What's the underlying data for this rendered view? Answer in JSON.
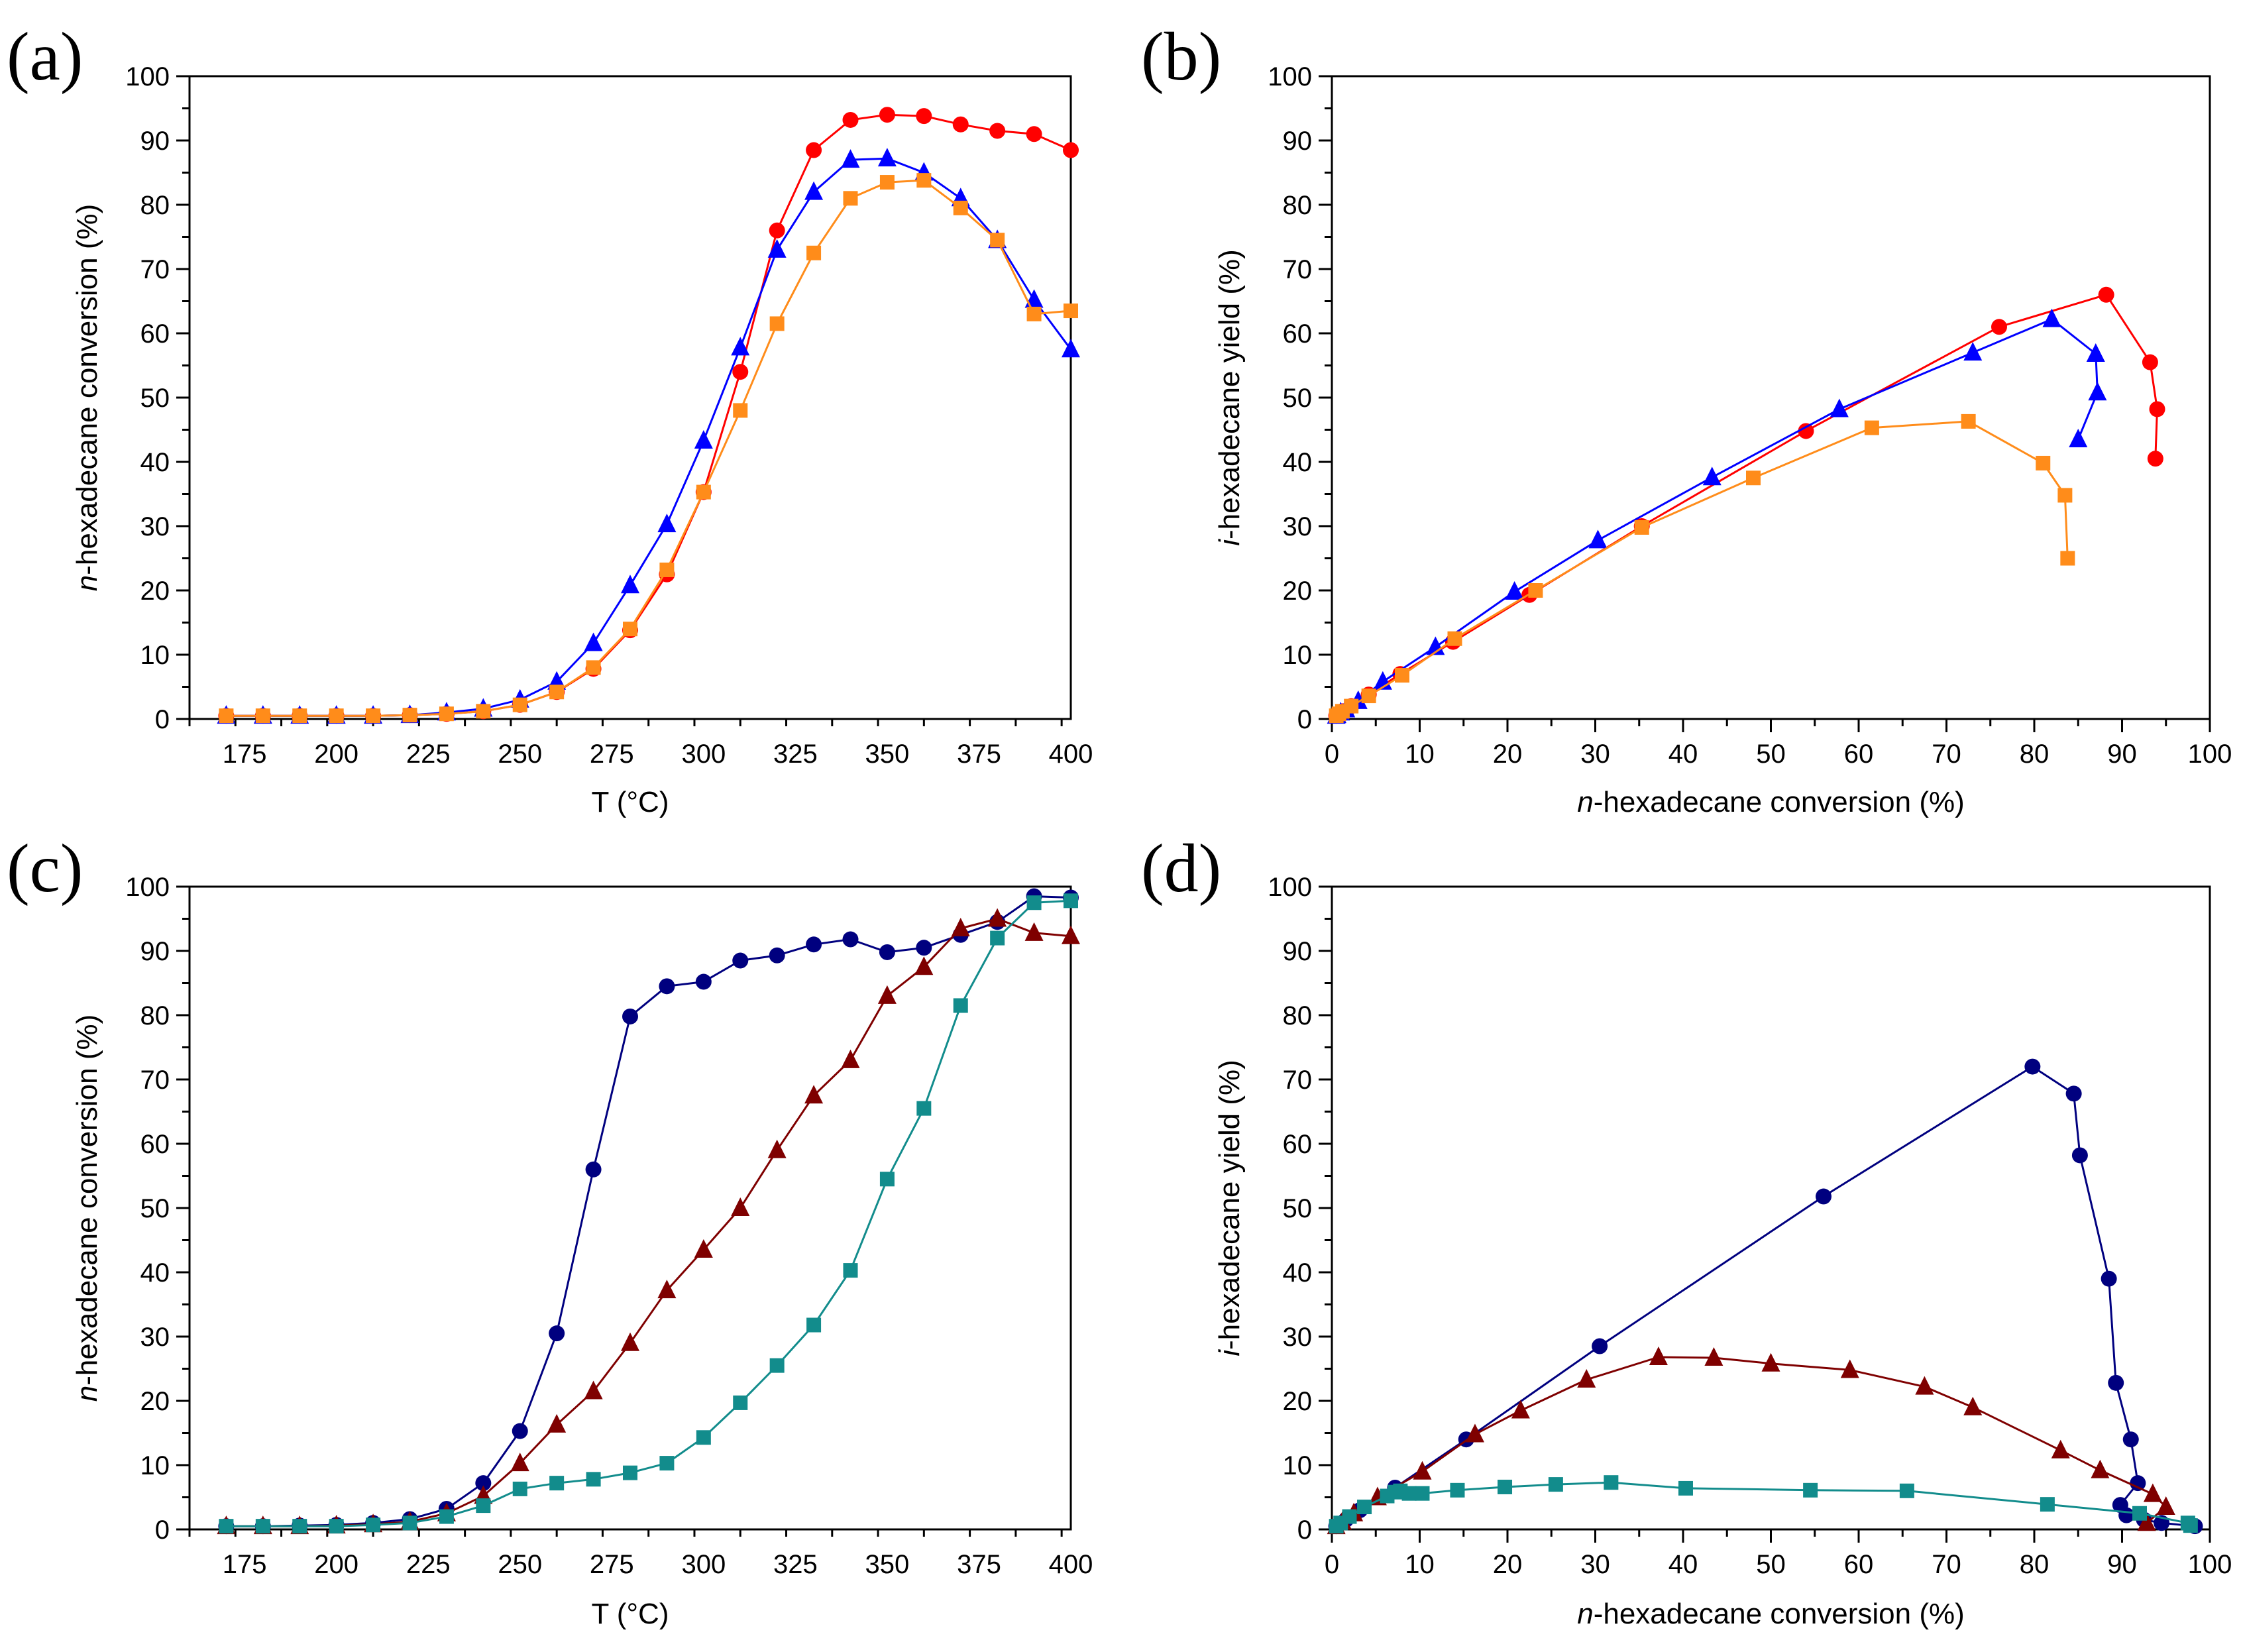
{
  "colors": {
    "red": "#ff0000",
    "blue": "#0000ff",
    "orange": "#ff8c1a",
    "navy": "#00007f",
    "maroon": "#7f0000",
    "teal": "#128c8c"
  },
  "chart_data": [
    {
      "id": "a",
      "panel_label": "(a)",
      "type": "line",
      "xlabel": "T (°C)",
      "ylabel": "n-hexadecane conversion (%)",
      "ylabel_italic": "n",
      "ylabel_rest": "-hexadecane conversion (%)",
      "xlim": [
        160,
        400
      ],
      "ylim": [
        0,
        100
      ],
      "xticks": [
        "175",
        "200",
        "225",
        "250",
        "275",
        "300",
        "325",
        "350",
        "375",
        "400"
      ],
      "yticks": [
        "0",
        "10",
        "20",
        "30",
        "40",
        "50",
        "60",
        "70",
        "80",
        "90",
        "100"
      ],
      "series": [
        {
          "name": "red-circles",
          "color": "red",
          "marker": "circle",
          "x": [
            170,
            180,
            190,
            200,
            210,
            220,
            230,
            240,
            250,
            260,
            270,
            280,
            290,
            300,
            310,
            320,
            330,
            340,
            350,
            360,
            370,
            380,
            390,
            400
          ],
          "y": [
            0.5,
            0.5,
            0.5,
            0.5,
            0.5,
            0.6,
            0.8,
            1.2,
            2.2,
            4.2,
            7.8,
            13.8,
            22.5,
            35.3,
            54,
            76,
            88.5,
            93.2,
            94,
            93.8,
            92.5,
            91.5,
            91,
            88.5
          ]
        },
        {
          "name": "blue-triangles",
          "color": "blue",
          "marker": "triangle",
          "x": [
            170,
            180,
            190,
            200,
            210,
            220,
            230,
            240,
            250,
            260,
            270,
            280,
            290,
            300,
            310,
            320,
            330,
            340,
            350,
            360,
            370,
            380,
            390,
            400
          ],
          "y": [
            0.5,
            0.5,
            0.5,
            0.5,
            0.5,
            0.6,
            1,
            1.6,
            3,
            5.8,
            11.8,
            20.8,
            30.3,
            43.3,
            57.8,
            73,
            82,
            87,
            87.2,
            85,
            81,
            74.5,
            65.2,
            57.5
          ]
        },
        {
          "name": "orange-squares",
          "color": "orange",
          "marker": "square",
          "x": [
            170,
            180,
            190,
            200,
            210,
            220,
            230,
            240,
            250,
            260,
            270,
            280,
            290,
            300,
            310,
            320,
            330,
            340,
            350,
            360,
            370,
            380,
            390,
            400
          ],
          "y": [
            0.5,
            0.5,
            0.5,
            0.5,
            0.5,
            0.6,
            0.8,
            1.2,
            2.2,
            4.2,
            8,
            14,
            23.2,
            35.3,
            48,
            61.5,
            72.5,
            81,
            83.5,
            83.8,
            79.5,
            74.5,
            63,
            63.5
          ]
        }
      ]
    },
    {
      "id": "b",
      "panel_label": "(b)",
      "type": "line",
      "xlabel": "n-hexadecane conversion (%)",
      "xlabel_italic": "n",
      "xlabel_rest": "-hexadecane conversion (%)",
      "ylabel": "i-hexadecane yield (%)",
      "ylabel_italic": "i",
      "ylabel_rest": "-hexadecane yield (%)",
      "xlim": [
        0,
        100
      ],
      "ylim": [
        0,
        100
      ],
      "xticks": [
        "0",
        "10",
        "20",
        "30",
        "40",
        "50",
        "60",
        "70",
        "80",
        "90",
        "100"
      ],
      "yticks": [
        "0",
        "10",
        "20",
        "30",
        "40",
        "50",
        "60",
        "70",
        "80",
        "90",
        "100"
      ],
      "series": [
        {
          "name": "red-circles",
          "color": "red",
          "marker": "circle",
          "x": [
            0.5,
            0.6,
            0.8,
            1.2,
            2.2,
            4.2,
            7.8,
            13.8,
            22.5,
            35.3,
            54,
            76,
            88.2,
            93.2,
            94,
            93.8
          ],
          "y": [
            0.5,
            0.6,
            0.8,
            1.2,
            2,
            3.8,
            7,
            12,
            19.3,
            30,
            44.8,
            61,
            66,
            55.5,
            48.2,
            40.5
          ]
        },
        {
          "name": "blue-triangles",
          "color": "blue",
          "marker": "triangle",
          "x": [
            0.5,
            0.6,
            1,
            1.6,
            3,
            5.8,
            11.8,
            20.8,
            30.3,
            43.3,
            57.8,
            73,
            82,
            87,
            87.2,
            85
          ],
          "y": [
            0.5,
            0.6,
            1,
            1.5,
            2.8,
            5.8,
            11.2,
            19.8,
            27.8,
            37.6,
            48.2,
            57,
            62.2,
            56.8,
            50.8,
            43.5
          ]
        },
        {
          "name": "orange-squares",
          "color": "orange",
          "marker": "square",
          "x": [
            0.5,
            0.8,
            1.2,
            2.2,
            4.2,
            8,
            14,
            23.2,
            35.3,
            48,
            61.5,
            72.5,
            81,
            83.5,
            83.8
          ],
          "y": [
            0.5,
            0.8,
            1.2,
            2,
            3.6,
            6.8,
            12.5,
            20,
            29.8,
            37.5,
            45.3,
            46.3,
            39.8,
            34.8,
            25
          ]
        }
      ]
    },
    {
      "id": "c",
      "panel_label": "(c)",
      "type": "line",
      "xlabel": "T (°C)",
      "ylabel": "n-hexadecane conversion (%)",
      "ylabel_italic": "n",
      "ylabel_rest": "-hexadecane conversion (%)",
      "xlim": [
        160,
        400
      ],
      "ylim": [
        0,
        100
      ],
      "xticks": [
        "175",
        "200",
        "225",
        "250",
        "275",
        "300",
        "325",
        "350",
        "375",
        "400"
      ],
      "yticks": [
        "0",
        "10",
        "20",
        "30",
        "40",
        "50",
        "60",
        "70",
        "80",
        "90",
        "100"
      ],
      "series": [
        {
          "name": "navy-circles",
          "color": "navy",
          "marker": "circle",
          "x": [
            170,
            180,
            190,
            200,
            210,
            220,
            230,
            240,
            250,
            260,
            270,
            280,
            290,
            300,
            310,
            320,
            330,
            340,
            350,
            360,
            370,
            380,
            390,
            400
          ],
          "y": [
            0.5,
            0.5,
            0.6,
            0.7,
            1,
            1.6,
            3.2,
            7.2,
            15.3,
            30.5,
            56,
            79.8,
            84.5,
            85.2,
            88.5,
            89.3,
            91,
            91.8,
            89.8,
            90.5,
            92.5,
            94.5,
            98.5,
            98.3
          ]
        },
        {
          "name": "maroon-triangles",
          "color": "maroon",
          "marker": "triangle",
          "x": [
            170,
            180,
            190,
            200,
            210,
            220,
            230,
            240,
            250,
            260,
            270,
            280,
            290,
            300,
            310,
            320,
            330,
            340,
            350,
            360,
            370,
            380,
            390,
            400
          ],
          "y": [
            0.5,
            0.5,
            0.5,
            0.6,
            0.8,
            1.2,
            2.5,
            5.2,
            10.3,
            16.3,
            21.5,
            29,
            37.2,
            43.5,
            50,
            59,
            67.5,
            73,
            83,
            87.5,
            93.5,
            95,
            92.8,
            92.3
          ]
        },
        {
          "name": "teal-squares",
          "color": "teal",
          "marker": "square",
          "x": [
            170,
            180,
            190,
            200,
            210,
            220,
            230,
            240,
            250,
            260,
            270,
            280,
            290,
            300,
            310,
            320,
            330,
            340,
            350,
            360,
            370,
            380,
            390,
            400
          ],
          "y": [
            0.5,
            0.5,
            0.5,
            0.5,
            0.7,
            1,
            2,
            3.7,
            6.3,
            7.2,
            7.8,
            8.8,
            10.3,
            14.3,
            19.7,
            25.5,
            31.8,
            40.3,
            54.5,
            65.5,
            81.5,
            92,
            97.5,
            97.8
          ]
        }
      ]
    },
    {
      "id": "d",
      "panel_label": "(d)",
      "type": "line",
      "xlabel": "n-hexadecane conversion (%)",
      "xlabel_italic": "n",
      "xlabel_rest": "-hexadecane conversion (%)",
      "ylabel": "i-hexadecane yield (%)",
      "ylabel_italic": "i",
      "ylabel_rest": "-hexadecane yield (%)",
      "xlim": [
        0,
        100
      ],
      "ylim": [
        0,
        100
      ],
      "xticks": [
        "0",
        "10",
        "20",
        "30",
        "40",
        "50",
        "60",
        "70",
        "80",
        "90",
        "100"
      ],
      "yticks": [
        "0",
        "10",
        "20",
        "30",
        "40",
        "50",
        "60",
        "70",
        "80",
        "90",
        "100"
      ],
      "series": [
        {
          "name": "navy-circles",
          "color": "navy",
          "marker": "circle",
          "x": [
            0.5,
            1.6,
            3.2,
            7.2,
            15.3,
            30.5,
            56,
            79.8,
            84.5,
            85.2,
            88.5,
            89.3,
            91,
            91.8,
            89.8,
            90.5,
            92.5,
            94.5,
            98.3
          ],
          "y": [
            0.5,
            1.5,
            3,
            6.5,
            14,
            28.5,
            51.8,
            72,
            67.8,
            58.2,
            39,
            22.8,
            14,
            7.2,
            3.8,
            2.2,
            1.5,
            1,
            0.5
          ]
        },
        {
          "name": "maroon-triangles",
          "color": "maroon",
          "marker": "triangle",
          "x": [
            0.5,
            1.2,
            2.5,
            5.2,
            10.3,
            16.3,
            21.5,
            29,
            37.2,
            43.5,
            50,
            59,
            67.5,
            73,
            83,
            87.5,
            93.5,
            95,
            92.8
          ],
          "y": [
            0.5,
            1.2,
            2.5,
            5,
            9,
            14.8,
            18.5,
            23.3,
            26.8,
            26.7,
            25.8,
            24.8,
            22.2,
            19,
            12.3,
            9.2,
            5.5,
            3.5,
            1
          ]
        },
        {
          "name": "teal-squares",
          "color": "teal",
          "marker": "square",
          "x": [
            0.5,
            1,
            2,
            3.7,
            6.3,
            7.2,
            7.8,
            8.8,
            10.3,
            14.3,
            19.7,
            25.5,
            31.8,
            40.3,
            54.5,
            65.5,
            81.5,
            92,
            97.5,
            97.8
          ],
          "y": [
            0.5,
            1,
            2,
            3.5,
            5.2,
            5.8,
            6,
            5.6,
            5.6,
            6.1,
            6.6,
            7,
            7.3,
            6.4,
            6.1,
            6,
            3.9,
            2.5,
            1,
            0.6
          ]
        }
      ]
    }
  ]
}
